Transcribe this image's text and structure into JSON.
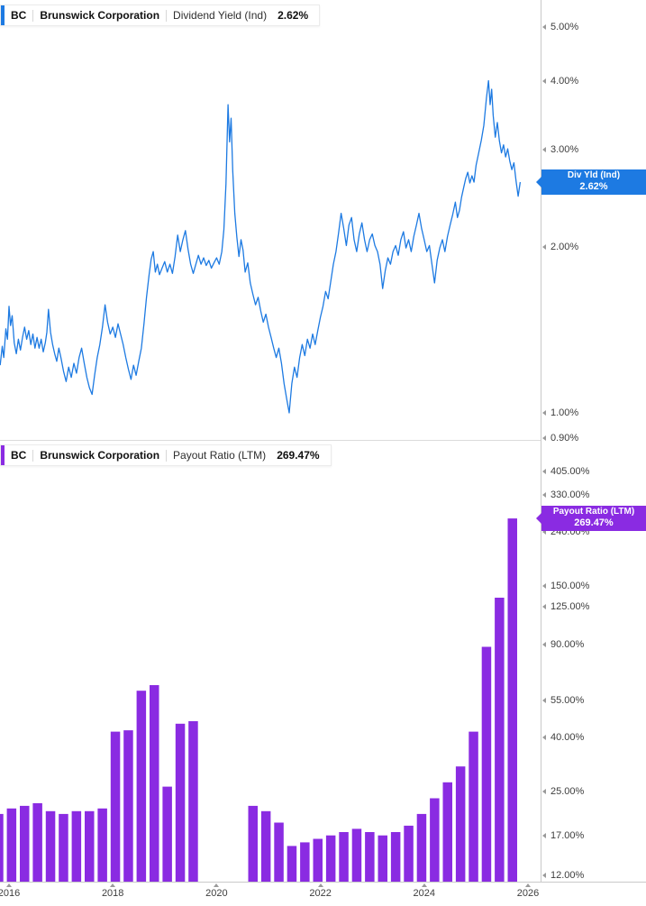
{
  "panels": [
    {
      "name": "dividend-yield",
      "header": {
        "ticker": "BC",
        "company": "Brunswick Corporation",
        "metric": "Dividend Yield (Ind)",
        "value": "2.62%"
      },
      "badge": {
        "line1": "Div Yld (Ind)",
        "line2": "2.62%"
      },
      "accent_color": "#1d7ae2"
    },
    {
      "name": "payout-ratio",
      "header": {
        "ticker": "BC",
        "company": "Brunswick Corporation",
        "metric": "Payout Ratio (LTM)",
        "value": "269.47%"
      },
      "badge": {
        "line1": "Payout Ratio (LTM)",
        "line2": "269.47%"
      },
      "accent_color": "#8a2be2"
    }
  ],
  "x_axis": {
    "labels": [
      {
        "text": "2016",
        "year": 2016
      },
      {
        "text": "2018",
        "year": 2018
      },
      {
        "text": "2020",
        "year": 2020
      },
      {
        "text": "2022",
        "year": 2022
      },
      {
        "text": "2024",
        "year": 2024
      },
      {
        "text": "2026",
        "year": 2026
      }
    ]
  },
  "chart_data": [
    {
      "type": "line",
      "name": "dividend-yield-ind",
      "ticker": "BC",
      "company": "Brunswick Corporation",
      "title": "Dividend Yield (Ind)",
      "current_value": 2.62,
      "current_value_label": "2.62%",
      "unit": "percent",
      "color": "#1d7ae2",
      "y_scale": "log",
      "x_range": [
        2015.83,
        2026.2
      ],
      "y_ticks": [
        {
          "value": 5,
          "label": "5.00%"
        },
        {
          "value": 4,
          "label": "4.00%"
        },
        {
          "value": 3,
          "label": "3.00%"
        },
        {
          "value": 2,
          "label": "2.00%"
        },
        {
          "value": 1,
          "label": "1.00%"
        },
        {
          "value": 0.9,
          "label": "0.90%"
        }
      ],
      "points": [
        [
          2015.83,
          1.22
        ],
        [
          2015.87,
          1.32
        ],
        [
          2015.9,
          1.26
        ],
        [
          2015.94,
          1.42
        ],
        [
          2015.97,
          1.36
        ],
        [
          2016.0,
          1.56
        ],
        [
          2016.03,
          1.44
        ],
        [
          2016.06,
          1.5
        ],
        [
          2016.1,
          1.34
        ],
        [
          2016.14,
          1.28
        ],
        [
          2016.18,
          1.36
        ],
        [
          2016.22,
          1.3
        ],
        [
          2016.26,
          1.37
        ],
        [
          2016.3,
          1.43
        ],
        [
          2016.34,
          1.36
        ],
        [
          2016.38,
          1.41
        ],
        [
          2016.42,
          1.33
        ],
        [
          2016.46,
          1.39
        ],
        [
          2016.5,
          1.31
        ],
        [
          2016.54,
          1.37
        ],
        [
          2016.58,
          1.31
        ],
        [
          2016.62,
          1.36
        ],
        [
          2016.66,
          1.29
        ],
        [
          2016.7,
          1.34
        ],
        [
          2016.73,
          1.4
        ],
        [
          2016.76,
          1.54
        ],
        [
          2016.8,
          1.4
        ],
        [
          2016.84,
          1.33
        ],
        [
          2016.88,
          1.28
        ],
        [
          2016.92,
          1.24
        ],
        [
          2016.96,
          1.31
        ],
        [
          2017.0,
          1.26
        ],
        [
          2017.05,
          1.19
        ],
        [
          2017.1,
          1.14
        ],
        [
          2017.15,
          1.21
        ],
        [
          2017.2,
          1.16
        ],
        [
          2017.25,
          1.23
        ],
        [
          2017.3,
          1.18
        ],
        [
          2017.35,
          1.26
        ],
        [
          2017.4,
          1.31
        ],
        [
          2017.45,
          1.23
        ],
        [
          2017.5,
          1.16
        ],
        [
          2017.55,
          1.11
        ],
        [
          2017.6,
          1.08
        ],
        [
          2017.65,
          1.17
        ],
        [
          2017.7,
          1.26
        ],
        [
          2017.75,
          1.33
        ],
        [
          2017.8,
          1.43
        ],
        [
          2017.85,
          1.57
        ],
        [
          2017.9,
          1.46
        ],
        [
          2017.95,
          1.39
        ],
        [
          2018.0,
          1.43
        ],
        [
          2018.05,
          1.37
        ],
        [
          2018.1,
          1.45
        ],
        [
          2018.15,
          1.39
        ],
        [
          2018.2,
          1.33
        ],
        [
          2018.25,
          1.26
        ],
        [
          2018.3,
          1.2
        ],
        [
          2018.35,
          1.15
        ],
        [
          2018.4,
          1.22
        ],
        [
          2018.45,
          1.17
        ],
        [
          2018.5,
          1.24
        ],
        [
          2018.55,
          1.31
        ],
        [
          2018.6,
          1.45
        ],
        [
          2018.65,
          1.62
        ],
        [
          2018.7,
          1.78
        ],
        [
          2018.74,
          1.9
        ],
        [
          2018.78,
          1.96
        ],
        [
          2018.82,
          1.8
        ],
        [
          2018.86,
          1.86
        ],
        [
          2018.9,
          1.78
        ],
        [
          2018.95,
          1.83
        ],
        [
          2019.0,
          1.88
        ],
        [
          2019.05,
          1.8
        ],
        [
          2019.1,
          1.86
        ],
        [
          2019.15,
          1.79
        ],
        [
          2019.2,
          1.92
        ],
        [
          2019.25,
          2.1
        ],
        [
          2019.3,
          1.96
        ],
        [
          2019.35,
          2.06
        ],
        [
          2019.4,
          2.14
        ],
        [
          2019.45,
          1.98
        ],
        [
          2019.5,
          1.86
        ],
        [
          2019.55,
          1.79
        ],
        [
          2019.6,
          1.86
        ],
        [
          2019.65,
          1.93
        ],
        [
          2019.7,
          1.86
        ],
        [
          2019.75,
          1.91
        ],
        [
          2019.8,
          1.85
        ],
        [
          2019.85,
          1.89
        ],
        [
          2019.9,
          1.83
        ],
        [
          2019.95,
          1.87
        ],
        [
          2020.0,
          1.91
        ],
        [
          2020.05,
          1.86
        ],
        [
          2020.1,
          1.96
        ],
        [
          2020.14,
          2.15
        ],
        [
          2020.18,
          2.6
        ],
        [
          2020.22,
          3.62
        ],
        [
          2020.25,
          3.1
        ],
        [
          2020.28,
          3.42
        ],
        [
          2020.31,
          2.75
        ],
        [
          2020.35,
          2.3
        ],
        [
          2020.39,
          2.08
        ],
        [
          2020.43,
          1.92
        ],
        [
          2020.47,
          2.06
        ],
        [
          2020.51,
          1.97
        ],
        [
          2020.55,
          1.8
        ],
        [
          2020.6,
          1.87
        ],
        [
          2020.65,
          1.72
        ],
        [
          2020.7,
          1.64
        ],
        [
          2020.75,
          1.57
        ],
        [
          2020.8,
          1.62
        ],
        [
          2020.85,
          1.53
        ],
        [
          2020.9,
          1.46
        ],
        [
          2020.95,
          1.51
        ],
        [
          2021.0,
          1.43
        ],
        [
          2021.05,
          1.37
        ],
        [
          2021.1,
          1.31
        ],
        [
          2021.15,
          1.26
        ],
        [
          2021.2,
          1.31
        ],
        [
          2021.25,
          1.23
        ],
        [
          2021.3,
          1.13
        ],
        [
          2021.35,
          1.06
        ],
        [
          2021.4,
          1.0
        ],
        [
          2021.45,
          1.13
        ],
        [
          2021.5,
          1.21
        ],
        [
          2021.55,
          1.16
        ],
        [
          2021.6,
          1.26
        ],
        [
          2021.65,
          1.33
        ],
        [
          2021.7,
          1.27
        ],
        [
          2021.75,
          1.36
        ],
        [
          2021.8,
          1.31
        ],
        [
          2021.85,
          1.39
        ],
        [
          2021.9,
          1.33
        ],
        [
          2021.95,
          1.41
        ],
        [
          2022.0,
          1.49
        ],
        [
          2022.05,
          1.56
        ],
        [
          2022.1,
          1.66
        ],
        [
          2022.15,
          1.61
        ],
        [
          2022.2,
          1.73
        ],
        [
          2022.25,
          1.86
        ],
        [
          2022.3,
          1.96
        ],
        [
          2022.35,
          2.12
        ],
        [
          2022.4,
          2.3
        ],
        [
          2022.45,
          2.16
        ],
        [
          2022.5,
          2.01
        ],
        [
          2022.55,
          2.19
        ],
        [
          2022.6,
          2.26
        ],
        [
          2022.65,
          2.06
        ],
        [
          2022.7,
          1.96
        ],
        [
          2022.75,
          2.11
        ],
        [
          2022.8,
          2.21
        ],
        [
          2022.85,
          2.06
        ],
        [
          2022.9,
          1.96
        ],
        [
          2022.95,
          2.06
        ],
        [
          2023.0,
          2.11
        ],
        [
          2023.05,
          2.01
        ],
        [
          2023.1,
          1.96
        ],
        [
          2023.15,
          1.86
        ],
        [
          2023.2,
          1.68
        ],
        [
          2023.25,
          1.81
        ],
        [
          2023.3,
          1.91
        ],
        [
          2023.35,
          1.86
        ],
        [
          2023.4,
          1.96
        ],
        [
          2023.45,
          2.01
        ],
        [
          2023.5,
          1.93
        ],
        [
          2023.55,
          2.06
        ],
        [
          2023.6,
          2.13
        ],
        [
          2023.65,
          1.99
        ],
        [
          2023.7,
          2.06
        ],
        [
          2023.75,
          1.96
        ],
        [
          2023.8,
          2.09
        ],
        [
          2023.85,
          2.19
        ],
        [
          2023.9,
          2.3
        ],
        [
          2023.95,
          2.16
        ],
        [
          2024.0,
          2.06
        ],
        [
          2024.05,
          1.96
        ],
        [
          2024.1,
          2.01
        ],
        [
          2024.15,
          1.86
        ],
        [
          2024.2,
          1.72
        ],
        [
          2024.25,
          1.89
        ],
        [
          2024.3,
          1.99
        ],
        [
          2024.35,
          2.06
        ],
        [
          2024.4,
          1.96
        ],
        [
          2024.45,
          2.09
        ],
        [
          2024.5,
          2.19
        ],
        [
          2024.55,
          2.29
        ],
        [
          2024.6,
          2.41
        ],
        [
          2024.64,
          2.26
        ],
        [
          2024.68,
          2.33
        ],
        [
          2024.72,
          2.46
        ],
        [
          2024.76,
          2.56
        ],
        [
          2024.8,
          2.66
        ],
        [
          2024.84,
          2.73
        ],
        [
          2024.88,
          2.61
        ],
        [
          2024.92,
          2.69
        ],
        [
          2024.96,
          2.62
        ],
        [
          2025.0,
          2.81
        ],
        [
          2025.05,
          2.96
        ],
        [
          2025.1,
          3.12
        ],
        [
          2025.15,
          3.32
        ],
        [
          2025.2,
          3.72
        ],
        [
          2025.24,
          4.0
        ],
        [
          2025.27,
          3.62
        ],
        [
          2025.3,
          3.86
        ],
        [
          2025.33,
          3.46
        ],
        [
          2025.37,
          3.16
        ],
        [
          2025.41,
          3.36
        ],
        [
          2025.45,
          3.11
        ],
        [
          2025.49,
          2.96
        ],
        [
          2025.53,
          3.06
        ],
        [
          2025.57,
          2.91
        ],
        [
          2025.61,
          3.01
        ],
        [
          2025.65,
          2.86
        ],
        [
          2025.69,
          2.76
        ],
        [
          2025.73,
          2.84
        ],
        [
          2025.77,
          2.63
        ],
        [
          2025.81,
          2.47
        ],
        [
          2025.85,
          2.62
        ]
      ]
    },
    {
      "type": "bar",
      "name": "payout-ratio-ltm",
      "ticker": "BC",
      "company": "Brunswick Corporation",
      "title": "Payout Ratio (LTM)",
      "current_value": 269.47,
      "current_value_label": "269.47%",
      "unit": "percent",
      "color": "#8a2be2",
      "y_scale": "log",
      "y_ticks": [
        {
          "value": 405,
          "label": "405.00%"
        },
        {
          "value": 330,
          "label": "330.00%"
        },
        {
          "value": 240,
          "label": "240.00%"
        },
        {
          "value": 150,
          "label": "150.00%"
        },
        {
          "value": 125,
          "label": "125.00%"
        },
        {
          "value": 90,
          "label": "90.00%"
        },
        {
          "value": 55,
          "label": "55.00%"
        },
        {
          "value": 40,
          "label": "40.00%"
        },
        {
          "value": 25,
          "label": "25.00%"
        },
        {
          "value": 17,
          "label": "17.00%"
        },
        {
          "value": 12,
          "label": "12.00%"
        }
      ],
      "bars": [
        [
          2015.8,
          20.5
        ],
        [
          2016.05,
          21.5
        ],
        [
          2016.3,
          22
        ],
        [
          2016.55,
          22.5
        ],
        [
          2016.8,
          21
        ],
        [
          2017.05,
          20.5
        ],
        [
          2017.3,
          21
        ],
        [
          2017.55,
          21
        ],
        [
          2017.8,
          21.5
        ],
        [
          2018.05,
          42
        ],
        [
          2018.3,
          42.5
        ],
        [
          2018.55,
          60
        ],
        [
          2018.8,
          63
        ],
        [
          2019.05,
          26
        ],
        [
          2019.3,
          45
        ],
        [
          2019.55,
          46
        ],
        [
          2020.7,
          22
        ],
        [
          2020.95,
          21
        ],
        [
          2021.2,
          19
        ],
        [
          2021.45,
          15.5
        ],
        [
          2021.7,
          16
        ],
        [
          2021.95,
          16.5
        ],
        [
          2022.2,
          17
        ],
        [
          2022.45,
          17.5
        ],
        [
          2022.7,
          18
        ],
        [
          2022.95,
          17.5
        ],
        [
          2023.2,
          17
        ],
        [
          2023.45,
          17.5
        ],
        [
          2023.7,
          18.5
        ],
        [
          2023.95,
          20.5
        ],
        [
          2024.2,
          23.5
        ],
        [
          2024.45,
          27
        ],
        [
          2024.7,
          31
        ],
        [
          2024.95,
          42
        ],
        [
          2025.2,
          88
        ],
        [
          2025.45,
          135
        ],
        [
          2025.7,
          269.47
        ]
      ]
    }
  ]
}
